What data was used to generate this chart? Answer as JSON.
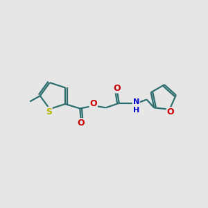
{
  "background_color": "#e6e6e6",
  "bond_color": "#2d6e6e",
  "bond_width": 1.6,
  "S_color": "#b8b800",
  "O_color": "#cc0000",
  "N_color": "#0000cc",
  "figsize": [
    3.0,
    3.0
  ],
  "dpi": 100,
  "xlim": [
    0,
    10
  ],
  "ylim": [
    0,
    10
  ]
}
